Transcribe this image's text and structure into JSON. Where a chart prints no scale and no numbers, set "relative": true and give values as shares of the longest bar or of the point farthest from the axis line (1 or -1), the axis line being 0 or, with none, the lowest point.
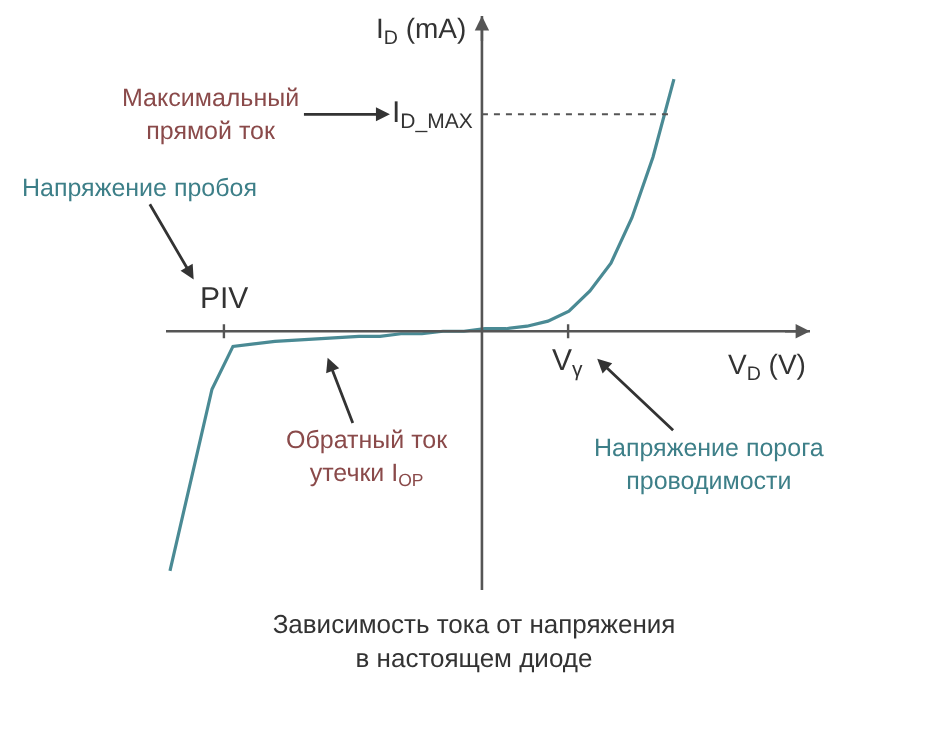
{
  "chart_data": {
    "type": "line",
    "relative": true,
    "title": "Зависимость тока от напряжения\nв настоящем диоде",
    "xlabel": "V$_{D}$ (V)",
    "ylabel": "I$_{D}$ (mA)",
    "categories": [
      null,
      null,
      null,
      null,
      null,
      null,
      null,
      null,
      null,
      null,
      null,
      null,
      null,
      null,
      null,
      null,
      null,
      null,
      null,
      null,
      null,
      null,
      null,
      null,
      null
    ],
    "series": [
      {
        "color": "#4a8a94",
        "values": [
          -0.95,
          -0.59,
          -0.23,
          -0.06,
          -0.05,
          -0.04,
          -0.035,
          -0.03,
          -0.025,
          -0.02,
          -0.02,
          -0.01,
          -0.01,
          0,
          0,
          0.01,
          0.01,
          0.02,
          0.04,
          0.08,
          0.16,
          0.27,
          0.45,
          0.69,
          1.0
        ]
      }
    ],
    "ref_lines": [
      {
        "axis": "y",
        "value": 0.86,
        "label": "I$_{D_MAX}$",
        "line_style": "dotted",
        "color": "#555555"
      }
    ],
    "annotations": [
      "Максимальный\nпрямой ток",
      "Напряжение пробоя",
      "Обратный ток\nутечки I$_{OP}$",
      "Напряжение порога\nпроводимости",
      "PIV",
      "V$_{γ}$"
    ],
    "marker": "none",
    "line_style": "solid"
  }
}
